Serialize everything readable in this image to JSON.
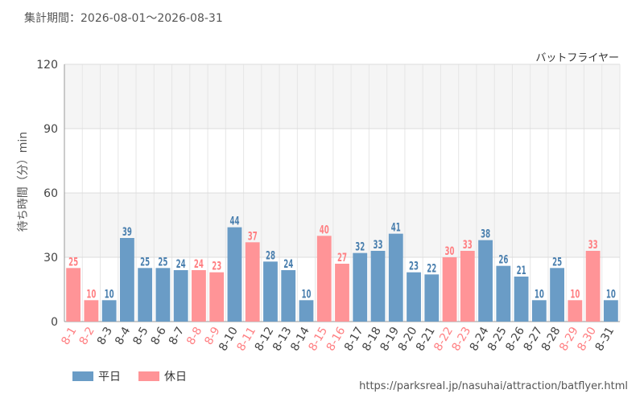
{
  "header": {
    "period": "集計期間：2026-08-01～2026-08-31"
  },
  "attraction_name": "バットフライヤー",
  "legend": {
    "weekday_label": "平日",
    "holiday_label": "休日"
  },
  "source_url": "https://parksreal.jp/nasuhai/attraction/batflyer.html",
  "colors": {
    "weekday": "#6a9cc6",
    "holiday": "#ff9497",
    "weekday_text": "#4a7fae",
    "holiday_text": "#ff7f82"
  },
  "chart_data": {
    "type": "bar",
    "ylabel": "待ち時間（分）min",
    "ylim": [
      0,
      120
    ],
    "yticks": [
      0,
      30,
      60,
      90,
      120
    ],
    "grid": true,
    "legend_position": "bottom-left",
    "categories": [
      "8-1",
      "8-2",
      "8-3",
      "8-4",
      "8-5",
      "8-6",
      "8-7",
      "8-8",
      "8-9",
      "8-10",
      "8-11",
      "8-12",
      "8-13",
      "8-14",
      "8-15",
      "8-16",
      "8-17",
      "8-18",
      "8-19",
      "8-20",
      "8-21",
      "8-22",
      "8-23",
      "8-24",
      "8-25",
      "8-26",
      "8-27",
      "8-28",
      "8-29",
      "8-30",
      "8-31"
    ],
    "values": [
      25,
      10,
      10,
      39,
      25,
      25,
      24,
      24,
      23,
      44,
      37,
      28,
      24,
      10,
      40,
      27,
      32,
      33,
      41,
      23,
      22,
      30,
      33,
      38,
      26,
      21,
      10,
      25,
      10,
      33,
      10
    ],
    "day_type": [
      "holiday",
      "holiday",
      "weekday",
      "weekday",
      "weekday",
      "weekday",
      "weekday",
      "holiday",
      "holiday",
      "weekday",
      "holiday",
      "weekday",
      "weekday",
      "weekday",
      "holiday",
      "holiday",
      "weekday",
      "weekday",
      "weekday",
      "weekday",
      "weekday",
      "holiday",
      "holiday",
      "weekday",
      "weekday",
      "weekday",
      "weekday",
      "weekday",
      "holiday",
      "holiday",
      "weekday"
    ]
  }
}
